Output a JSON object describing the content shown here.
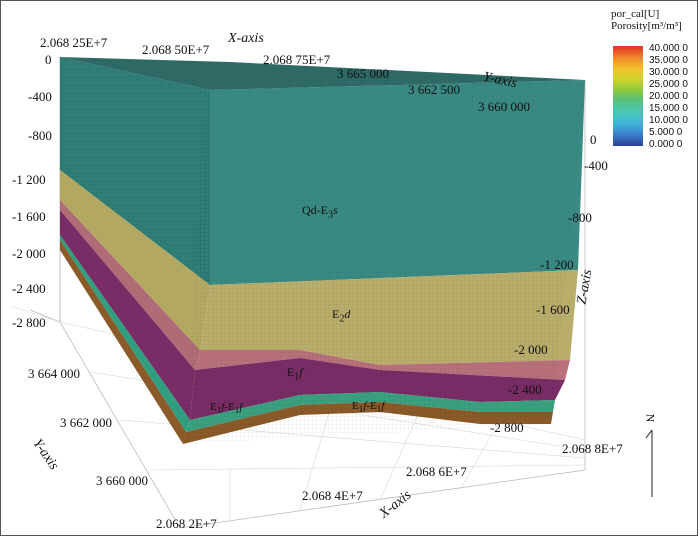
{
  "legend": {
    "title_line1": "por_cal[U]",
    "title_line2": "Porosity[m³/m³]",
    "ticks": [
      "40.000 0",
      "35.000 0",
      "30.000 0",
      "25.000 0",
      "20.000 0",
      "15.000 0",
      "10.000 0",
      "5.000 0",
      "0.000 0"
    ],
    "colors": [
      "#2b3f8f",
      "#3fb4d8",
      "#58c07a",
      "#cbd22f",
      "#f08a2a",
      "#e0302a"
    ]
  },
  "axes": {
    "x_title_top": "X-axis",
    "x_title_bottom": "X-axis",
    "y_title_top": "Y-axis",
    "y_title_left": "Y-axis",
    "z_title": "Z-axis",
    "x_top_ticks": [
      "2.068 25E+7",
      "2.068 50E+7",
      "2.068 75E+7"
    ],
    "y_top_ticks": [
      "3 665 000",
      "3 662 500",
      "3 660 000"
    ],
    "z_left_ticks": [
      "0",
      "-400",
      "-800",
      "-1 200",
      "-1 600",
      "-2 000",
      "-2 400",
      "-2 800"
    ],
    "z_right_ticks": [
      "0",
      "-400",
      "-800",
      "-1 200",
      "-1 600",
      "-2 000",
      "-2 400",
      "-2 800"
    ],
    "y_left_ticks": [
      "3 664 000",
      "3 662 000",
      "3 660 000"
    ],
    "x_bottom_ticks": [
      "2.068 2E+7",
      "2.068 4E+7",
      "2.068 6E+7",
      "2.068 8E+7"
    ]
  },
  "units": {
    "qd_main": "Qd-E",
    "qd_sub": "3",
    "qd_italic": "s",
    "e2d_main": "E",
    "e2d_sub": "2",
    "e2d_italic": "d",
    "e1f_main": "E",
    "e1f_sub": "1",
    "e1f_italic": "f",
    "left_a_main": "E",
    "left_a_sub": "1",
    "left_a_italic": "f",
    "left_a_dash": "-E",
    "left_a_sub2": "1",
    "left_a_italic2": "f",
    "right_a_main": "E",
    "right_a_sub": "1",
    "right_a_italic": "f",
    "right_a_dash": "-E",
    "right_a_sub2": "1",
    "right_a_italic2": "f"
  },
  "north_label": "N",
  "layer_colors": {
    "top_surface": "#2f6f6a",
    "qd_face": "#3a8a84",
    "e2d_face": "#b9ad6c",
    "pink_band": "#b8707a",
    "e1f_face": "#7a2c66",
    "green_band": "#3aa080",
    "brown_base": "#8a5a28"
  }
}
